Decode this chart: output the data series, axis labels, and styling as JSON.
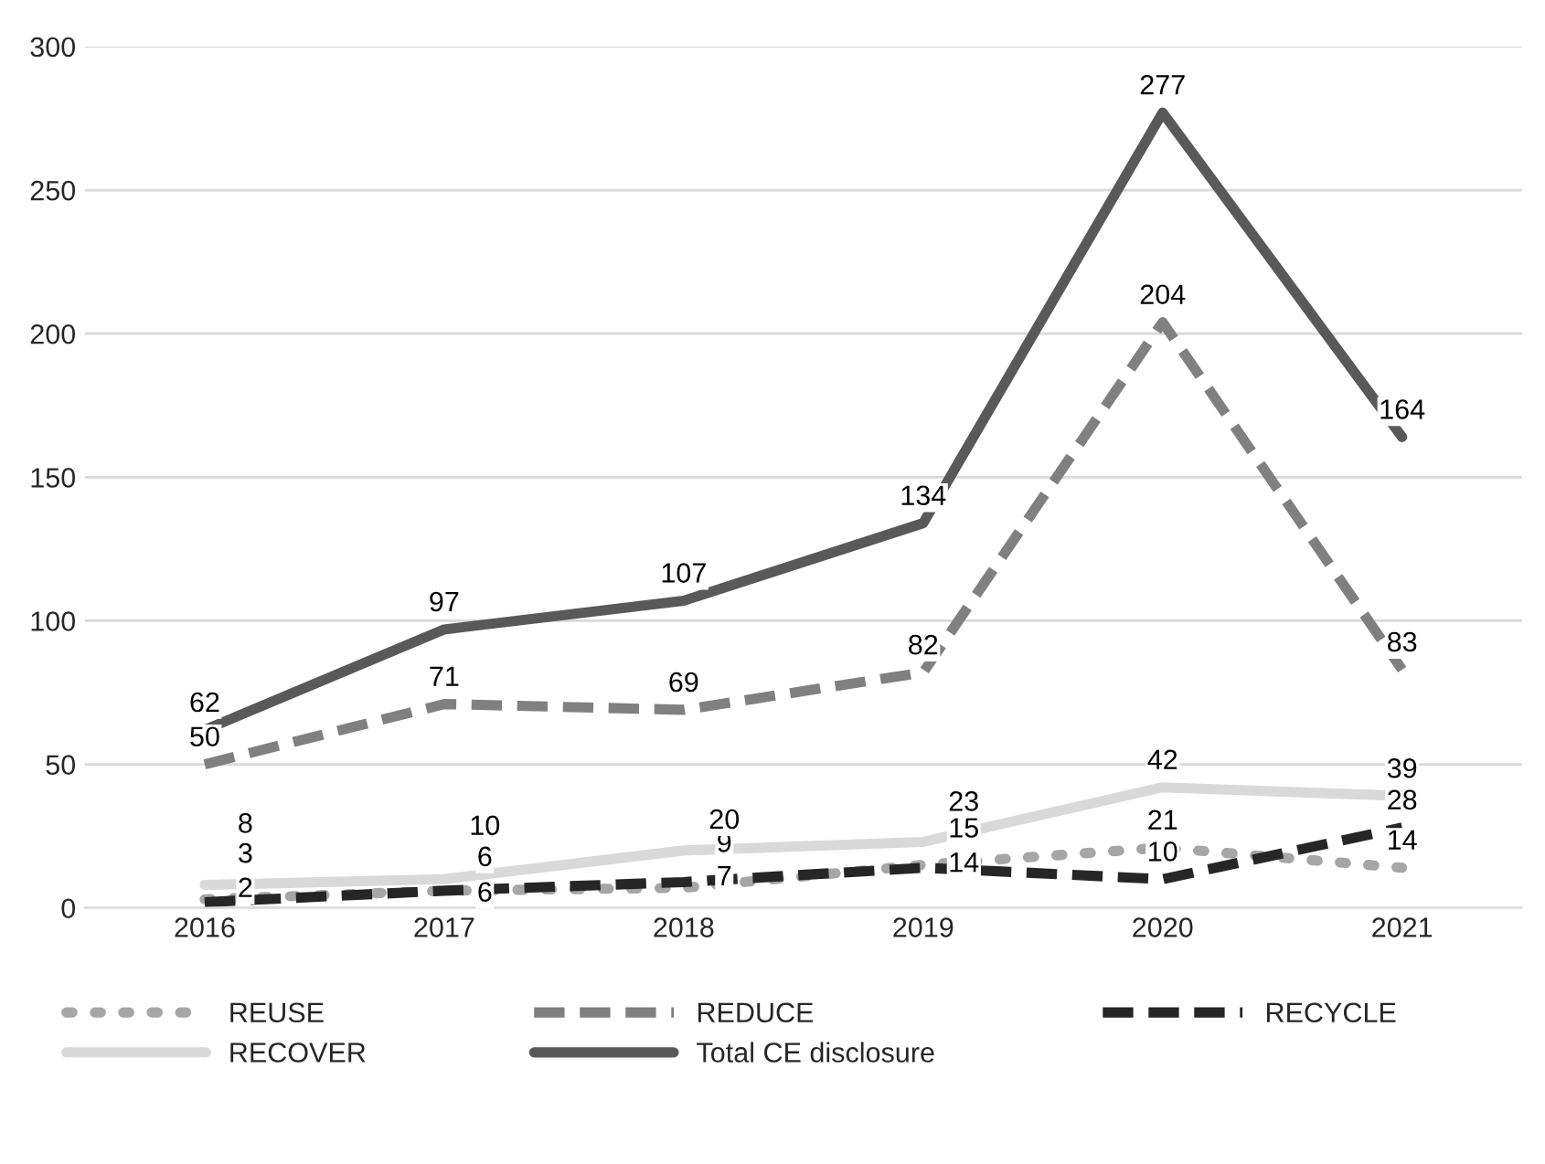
{
  "chart_data": {
    "type": "line",
    "categories": [
      "2016",
      "2017",
      "2018",
      "2019",
      "2020",
      "2021"
    ],
    "series": [
      {
        "name": "REUSE",
        "color": "#a6a6a6",
        "line_style": "dotted",
        "values": [
          3,
          6,
          7,
          15,
          21,
          14
        ]
      },
      {
        "name": "REDUCE",
        "color": "#808080",
        "line_style": "dashed",
        "values": [
          50,
          71,
          69,
          82,
          204,
          83
        ]
      },
      {
        "name": "RECYCLE",
        "color": "#262626",
        "line_style": "dashed",
        "values": [
          2,
          6,
          9,
          14,
          10,
          28
        ]
      },
      {
        "name": "RECOVER",
        "color": "#d9d9d9",
        "line_style": "solid",
        "values": [
          8,
          10,
          20,
          23,
          42,
          39
        ]
      },
      {
        "name": "Total CE disclosure",
        "color": "#595959",
        "line_style": "solid",
        "values": [
          62,
          97,
          107,
          134,
          277,
          164
        ]
      }
    ],
    "ylim": [
      0,
      300
    ],
    "yticks": [
      0,
      50,
      100,
      150,
      200,
      250,
      300
    ],
    "grid": "y",
    "legend": "bottom",
    "data_labels": true,
    "marker": "none"
  }
}
